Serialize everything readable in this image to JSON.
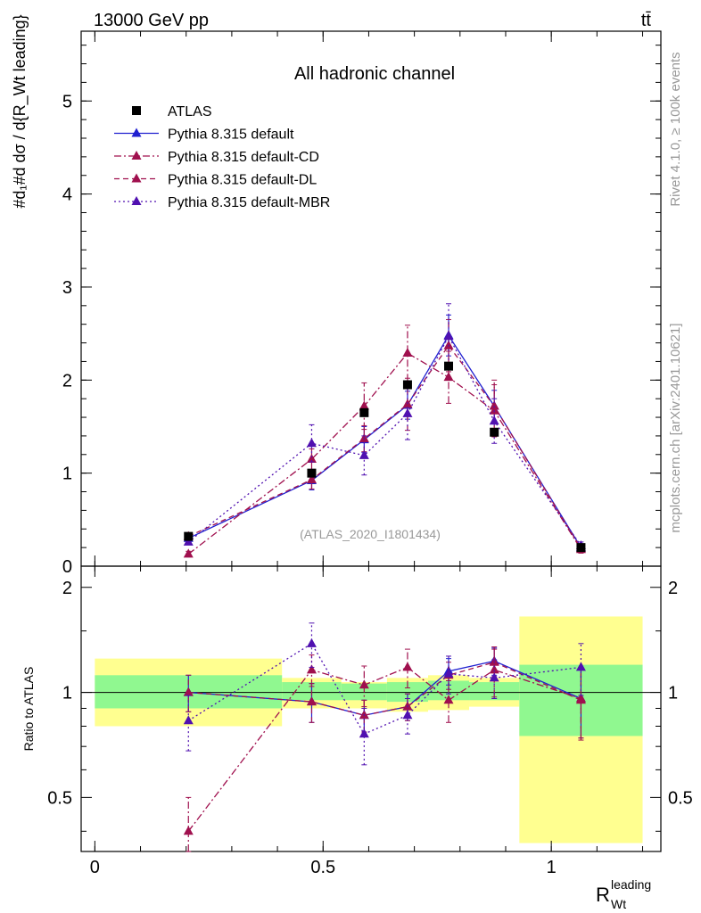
{
  "header": {
    "left_label": "13000 GeV pp",
    "right_label": "tt̄"
  },
  "side_labels": {
    "rivet": "Rivet 4.1.0, ≥ 100k events",
    "mcplots": "mcplots.cern.ch [arXiv:2401.10621]"
  },
  "colors": {
    "cd": "#a0104e",
    "default": "#2020d0",
    "mbr": "#5010b0",
    "yellow": "#ffff90",
    "green": "#90f890",
    "data": "#000000"
  },
  "chart_data": {
    "type": "line",
    "title": "All hadronic channel",
    "watermark": "(ATLAS_2020_I1801434)",
    "ylabel_main": "#d₁#d dσ / d{R_Wt leading}",
    "ylabel_ratio": "Ratio to ATLAS",
    "xlabel": "R_Wt leading",
    "xlabel_main": "R",
    "xlabel_sup": "leading",
    "xlabel_sub": "Wt",
    "xlim": [
      -0.03,
      1.24
    ],
    "ylim_main": [
      0,
      5.75
    ],
    "ylim_ratio": [
      0.35,
      2.3
    ],
    "x_ticks": [
      "0",
      "0.5",
      "1"
    ],
    "y_ticks_main": [
      "0",
      "1",
      "2",
      "3",
      "4",
      "5"
    ],
    "y_ticks_ratio": [
      "0.5",
      "1",
      "2"
    ],
    "legend": [
      "ATLAS",
      "Pythia 8.315 default",
      "Pythia 8.315 default-CD",
      "Pythia 8.315 default-DL",
      "Pythia 8.315 default-MBR"
    ],
    "bins": [
      [
        0.0,
        0.41
      ],
      [
        0.41,
        0.54
      ],
      [
        0.54,
        0.64
      ],
      [
        0.64,
        0.73
      ],
      [
        0.73,
        0.82
      ],
      [
        0.82,
        0.93
      ],
      [
        0.93,
        1.2
      ]
    ],
    "x": [
      0.205,
      0.475,
      0.59,
      0.685,
      0.775,
      0.875,
      1.065
    ],
    "atlas": {
      "values": [
        0.32,
        1.0,
        1.65,
        1.95,
        2.15,
        1.44,
        0.2
      ]
    },
    "series": [
      {
        "name": "Pythia 8.315 default",
        "style": "solid",
        "color": "#2020d0",
        "values": [
          0.3,
          0.92,
          1.36,
          1.73,
          2.48,
          1.72,
          0.2
        ],
        "errors": [
          0.03,
          0.1,
          0.14,
          0.15,
          0.22,
          0.17,
          0.04
        ]
      },
      {
        "name": "Pythia 8.315 default-CD",
        "style": "dashdot",
        "color": "#a0104e",
        "values": [
          0.13,
          1.15,
          1.72,
          2.29,
          2.03,
          1.67,
          0.18
        ],
        "errors": [
          0.03,
          0.11,
          0.25,
          0.3,
          0.28,
          0.28,
          0.04
        ]
      },
      {
        "name": "Pythia 8.315 default-DL",
        "style": "dashed",
        "color": "#a0104e",
        "values": [
          0.32,
          0.93,
          1.37,
          1.74,
          2.37,
          1.72,
          0.19
        ],
        "errors": [
          0.03,
          0.1,
          0.14,
          0.28,
          0.28,
          0.28,
          0.04
        ]
      },
      {
        "name": "Pythia 8.315 default-MBR",
        "style": "dotted",
        "color": "#5010b0",
        "values": [
          0.26,
          1.32,
          1.19,
          1.64,
          2.47,
          1.56,
          0.22
        ],
        "errors": [
          0.03,
          0.2,
          0.21,
          0.28,
          0.35,
          0.24,
          0.04
        ]
      }
    ],
    "ratio": {
      "green_band": [
        [
          0.9,
          1.12
        ],
        [
          0.95,
          1.07
        ],
        [
          0.95,
          1.06
        ],
        [
          0.94,
          1.07
        ],
        [
          0.95,
          1.08
        ],
        [
          0.95,
          1.07
        ],
        [
          0.75,
          1.2
        ]
      ],
      "yellow_band": [
        [
          0.8,
          1.25
        ],
        [
          0.9,
          1.1
        ],
        [
          0.9,
          1.07
        ],
        [
          0.88,
          1.1
        ],
        [
          0.89,
          1.12
        ],
        [
          0.91,
          1.1
        ],
        [
          0.37,
          1.65
        ]
      ],
      "series": [
        {
          "name": "Pythia 8.315 default",
          "values": [
            1.0,
            0.94,
            0.86,
            0.91,
            1.15,
            1.23,
            0.96
          ],
          "errors": [
            0.12,
            0.12,
            0.09,
            0.08,
            0.1,
            0.11,
            0.22
          ]
        },
        {
          "name": "Pythia 8.315 default-CD",
          "values": [
            0.4,
            1.16,
            1.05,
            1.18,
            0.95,
            1.16,
            0.96
          ],
          "errors": [
            0.1,
            0.12,
            0.14,
            0.15,
            0.13,
            0.19,
            0.22
          ]
        },
        {
          "name": "Pythia 8.315 default-DL",
          "values": [
            1.0,
            0.94,
            0.86,
            0.91,
            1.12,
            1.22,
            0.95
          ],
          "errors": [
            0.12,
            0.12,
            0.09,
            0.08,
            0.1,
            0.11,
            0.22
          ]
        },
        {
          "name": "Pythia 8.315 default-MBR",
          "values": [
            0.83,
            1.38,
            0.76,
            0.86,
            1.13,
            1.1,
            1.18
          ],
          "errors": [
            0.15,
            0.2,
            0.14,
            0.1,
            0.14,
            0.14,
            0.2
          ]
        }
      ]
    }
  }
}
